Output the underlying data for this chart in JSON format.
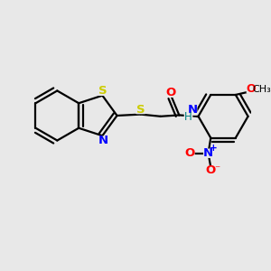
{
  "background_color": "#e8e8e8",
  "atom_colors": {
    "S": "#cccc00",
    "N": "#0000ff",
    "O": "#ff0000",
    "C": "#000000",
    "H": "#008080"
  },
  "bond_color": "#000000",
  "bond_width": 1.6,
  "figsize": [
    3.0,
    3.0
  ],
  "dpi": 100,
  "xlim": [
    0,
    10
  ],
  "ylim": [
    0,
    10
  ]
}
